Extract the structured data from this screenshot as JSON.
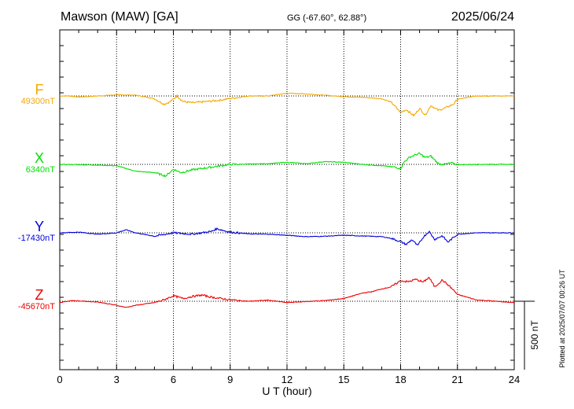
{
  "header": {
    "station": "Mawson (MAW)  [GA]",
    "coords": "GG (-67.60°,  62.88°)",
    "date": "2025/06/24"
  },
  "footer": {
    "plotted": "Plotted at 2025/07/07 00:26 UT"
  },
  "chart_data": {
    "type": "line",
    "title": "Mawson (MAW)  [GA]",
    "xlabel": "U T (hour)",
    "xlim": [
      0,
      24
    ],
    "xticks": [
      0,
      3,
      6,
      9,
      12,
      15,
      18,
      21,
      24
    ],
    "grid": true,
    "scale_bar": {
      "label": "500 nT",
      "value_nT": 500
    },
    "series": [
      {
        "name": "F",
        "baseline_label": "49300nT",
        "baseline": 49300,
        "color": "#f5a800",
        "x": [
          0,
          0.5,
          1,
          2,
          3,
          4,
          5,
          5.5,
          5.8,
          6.2,
          6.5,
          7,
          8,
          8.5,
          9,
          10,
          11,
          12,
          13,
          14,
          15,
          16,
          17,
          17.5,
          18,
          18.3,
          18.7,
          19,
          19.3,
          19.6,
          20,
          20.4,
          20.8,
          21,
          21.5,
          22,
          23,
          24
        ],
        "y": [
          49300,
          49300,
          49292,
          49300,
          49308,
          49306,
          49280,
          49240,
          49255,
          49300,
          49260,
          49250,
          49262,
          49270,
          49282,
          49300,
          49300,
          49320,
          49315,
          49305,
          49295,
          49290,
          49280,
          49255,
          49180,
          49200,
          49155,
          49210,
          49160,
          49230,
          49195,
          49215,
          49240,
          49275,
          49288,
          49300,
          49300,
          49300
        ]
      },
      {
        "name": "X",
        "baseline_label": "6340nT",
        "baseline": 6340,
        "color": "#00e000",
        "x": [
          0,
          1,
          2,
          3,
          4,
          5,
          5.6,
          6,
          6.4,
          7,
          8,
          9,
          10,
          11,
          12,
          13,
          14,
          15,
          16,
          17,
          17.7,
          18,
          18.2,
          18.5,
          19,
          19.3,
          19.6,
          20,
          20.3,
          20.7,
          21,
          22,
          23,
          24
        ],
        "y": [
          6340,
          6338,
          6335,
          6330,
          6290,
          6280,
          6255,
          6305,
          6280,
          6300,
          6320,
          6340,
          6342,
          6345,
          6355,
          6345,
          6360,
          6355,
          6340,
          6330,
          6320,
          6310,
          6360,
          6395,
          6420,
          6390,
          6400,
          6345,
          6340,
          6350,
          6338,
          6340,
          6340,
          6340
        ]
      },
      {
        "name": "Y",
        "baseline_label": "-17430nT",
        "baseline": -17430,
        "color": "#0000dd",
        "x": [
          0,
          1,
          2,
          3,
          3.5,
          4,
          5,
          6,
          7,
          8,
          8.3,
          8.7,
          9,
          10,
          11,
          12,
          13,
          14,
          15,
          16,
          17,
          17.5,
          18,
          18.3,
          18.6,
          18.9,
          19.2,
          19.5,
          19.8,
          20.2,
          20.5,
          21,
          22,
          23,
          24
        ],
        "y": [
          -17430,
          -17425,
          -17440,
          -17430,
          -17408,
          -17430,
          -17455,
          -17430,
          -17440,
          -17420,
          -17400,
          -17415,
          -17425,
          -17438,
          -17440,
          -17448,
          -17458,
          -17455,
          -17448,
          -17453,
          -17458,
          -17470,
          -17495,
          -17515,
          -17480,
          -17525,
          -17460,
          -17420,
          -17478,
          -17452,
          -17498,
          -17440,
          -17430,
          -17430,
          -17430
        ]
      },
      {
        "name": "Z",
        "baseline_label": "-45670nT",
        "baseline": -45670,
        "color": "#ee0000",
        "x": [
          0,
          0.6,
          1,
          2,
          3,
          3.5,
          4,
          5,
          5.5,
          6,
          6.5,
          7,
          7.5,
          8,
          9,
          10,
          11,
          12,
          13,
          14,
          15,
          16,
          16.5,
          17,
          17.5,
          18,
          18.4,
          18.8,
          19.2,
          19.5,
          19.8,
          20.2,
          20.5,
          20.8,
          21,
          22,
          23,
          24
        ],
        "y": [
          -45680,
          -45665,
          -45668,
          -45675,
          -45700,
          -45715,
          -45700,
          -45680,
          -45660,
          -45630,
          -45650,
          -45635,
          -45625,
          -45640,
          -45660,
          -45670,
          -45662,
          -45680,
          -45672,
          -45665,
          -45650,
          -45610,
          -45600,
          -45580,
          -45565,
          -45520,
          -45528,
          -45510,
          -45530,
          -45495,
          -45565,
          -45515,
          -45550,
          -45590,
          -45620,
          -45660,
          -45670,
          -45680
        ]
      }
    ]
  }
}
